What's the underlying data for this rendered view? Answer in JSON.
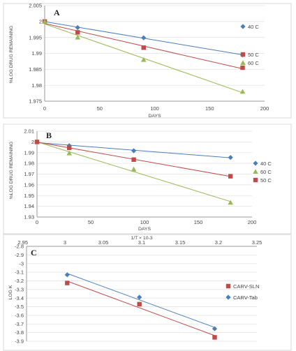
{
  "chart_data": [
    {
      "type": "scatter",
      "panel_letter": "A",
      "xlabel": "DAYS",
      "ylabel": "%LOG DRUG REMAINING",
      "xlim": [
        0,
        200
      ],
      "ylim": [
        1.975,
        2.005
      ],
      "x_ticks": [
        0,
        50,
        100,
        150,
        200
      ],
      "y_ticks": [
        1.975,
        1.98,
        1.985,
        1.99,
        1.995,
        2,
        2.005
      ],
      "legend_position": "right",
      "series": [
        {
          "name": "40 C",
          "color": "#4a7ebb",
          "marker": "diamond",
          "x": [
            0,
            30,
            90,
            180
          ],
          "y": [
            2.0,
            1.9981,
            1.9949,
            1.9895
          ]
        },
        {
          "name": "50 C",
          "color": "#be4b48",
          "marker": "square",
          "x": [
            0,
            30,
            90,
            180
          ],
          "y": [
            2.0,
            1.9966,
            1.9918,
            1.9855
          ]
        },
        {
          "name": "60 C",
          "color": "#98b954",
          "marker": "triangle",
          "x": [
            0,
            30,
            90,
            180
          ],
          "y": [
            2.0,
            1.995,
            1.988,
            1.978
          ]
        }
      ]
    },
    {
      "type": "scatter",
      "panel_letter": "B",
      "xlabel": "DAYS",
      "ylabel": "%LOG DRUG REMAINING",
      "xlim": [
        0,
        200
      ],
      "ylim": [
        1.93,
        2.01
      ],
      "x_ticks": [
        0,
        50,
        100,
        150,
        200
      ],
      "y_ticks": [
        1.93,
        1.94,
        1.95,
        1.96,
        1.97,
        1.98,
        1.99,
        2,
        2.01
      ],
      "legend_position": "right",
      "series": [
        {
          "name": "40 C",
          "color": "#4a7ebb",
          "marker": "diamond",
          "x": [
            0,
            30,
            90,
            180
          ],
          "y": [
            2.0,
            1.9965,
            1.9918,
            1.9855
          ]
        },
        {
          "name": "60 C",
          "color": "#98b954",
          "marker": "triangle",
          "x": [
            0,
            30,
            90,
            180
          ],
          "y": [
            2.0,
            1.9895,
            1.9745,
            1.9435
          ]
        },
        {
          "name": "50 C",
          "color": "#be4b48",
          "marker": "square",
          "x": [
            0,
            30,
            90,
            180
          ],
          "y": [
            2.0,
            1.9945,
            1.9835,
            1.968
          ]
        }
      ]
    },
    {
      "type": "scatter",
      "panel_letter": "C",
      "xlabel": "1/T × 10-3",
      "ylabel": "LOG K",
      "xlim": [
        2.95,
        3.25
      ],
      "ylim": [
        -3.9,
        -2.8
      ],
      "x_ticks": [
        2.95,
        3,
        3.05,
        3.1,
        3.15,
        3.2,
        3.25
      ],
      "y_ticks": [
        -2.8,
        -2.9,
        -3,
        -3.1,
        -3.2,
        -3.3,
        -3.4,
        -3.5,
        -3.6,
        -3.7,
        -3.8,
        -3.9
      ],
      "x_axis_position": "top",
      "legend_position": "right",
      "series": [
        {
          "name": "CARV-SLN",
          "color": "#be4b48",
          "marker": "square",
          "x": [
            3.003,
            3.097,
            3.195
          ],
          "y": [
            -3.225,
            -3.47,
            -3.855
          ]
        },
        {
          "name": "CARV-Tab",
          "color": "#4a7ebb",
          "marker": "diamond",
          "x": [
            3.003,
            3.097,
            3.195
          ],
          "y": [
            -3.13,
            -3.39,
            -3.755
          ]
        }
      ]
    }
  ]
}
